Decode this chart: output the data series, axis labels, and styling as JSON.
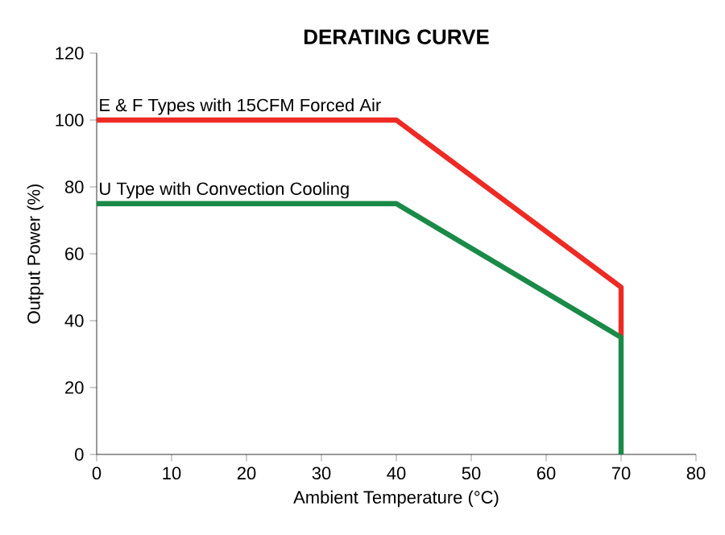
{
  "chart_data": {
    "type": "line",
    "title": "DERATING CURVE",
    "xlabel": "Ambient Temperature (°C)",
    "ylabel": "Output Power (%)",
    "xlim": [
      0,
      80
    ],
    "ylim": [
      0,
      120
    ],
    "xticks": [
      0,
      10,
      20,
      30,
      40,
      50,
      60,
      70,
      80
    ],
    "yticks": [
      0,
      20,
      40,
      60,
      80,
      100,
      120
    ],
    "grid": false,
    "legend": false,
    "marker": "none",
    "line_style": "solid",
    "series": [
      {
        "name": "E & F Types with 15CFM Forced Air",
        "color": "#ee2a24",
        "x": [
          0,
          40,
          70,
          70
        ],
        "values": [
          100,
          100,
          50,
          35
        ]
      },
      {
        "name": "U Type with Convection Cooling",
        "color": "#198a47",
        "x": [
          0,
          40,
          70,
          70
        ],
        "values": [
          75,
          75,
          35,
          0
        ]
      }
    ]
  }
}
